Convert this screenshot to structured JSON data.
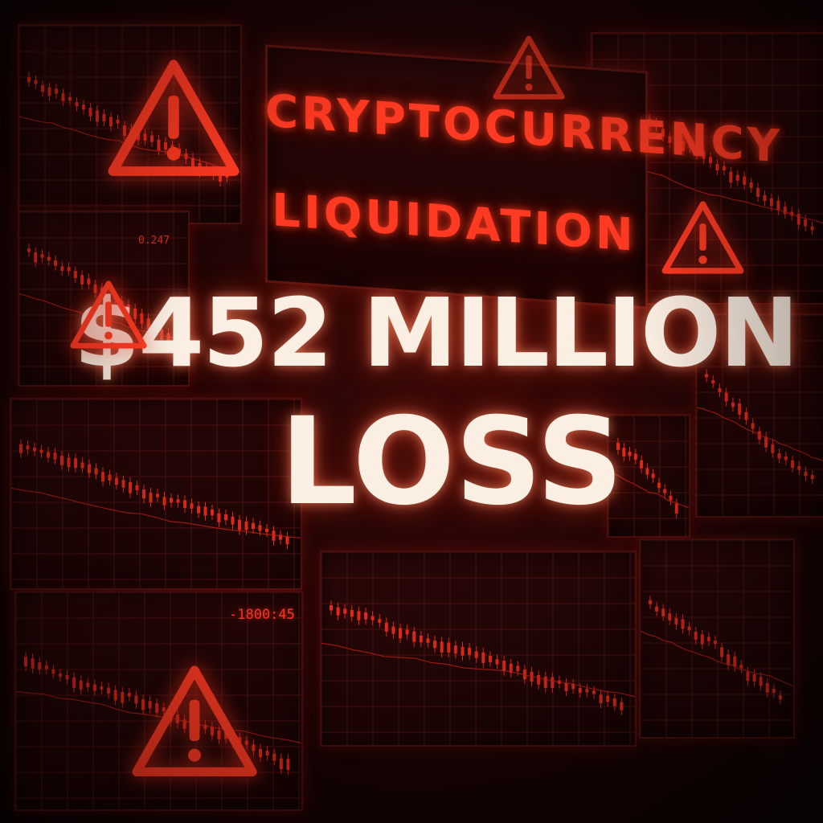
{
  "headline": {
    "line1": "CRYPTOCURRENCY",
    "line2": "LIQUIDATION",
    "amount": "$452 MILLION",
    "loss": "LOSS"
  },
  "timer_readout": "-1800:45",
  "small_readout": "0.247",
  "icons": [
    "warning-triangle-icon"
  ],
  "colors": {
    "accent_red": "#ff3a22",
    "chart_red": "#e0281a",
    "text_cream": "#fbeee2",
    "background": "#120404"
  }
}
